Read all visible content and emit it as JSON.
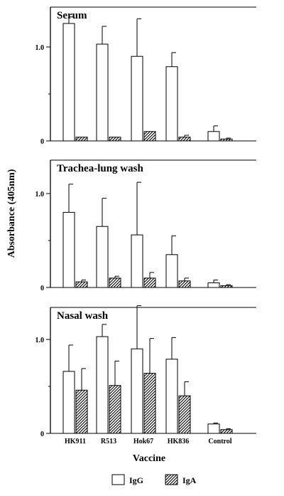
{
  "chart_data": {
    "type": "bar",
    "xlabel": "Vaccine",
    "ylabel": "Absorbance (405nm)",
    "categories": [
      "HK911",
      "R513",
      "Hok67",
      "HK836",
      "Control"
    ],
    "ylim": [
      0,
      1.35
    ],
    "yticks": [
      0,
      1.0
    ],
    "ytick_labels": [
      "0",
      "1.0"
    ],
    "legend": {
      "placement": "bottom",
      "entries": [
        {
          "label": "IgG",
          "pattern": "open"
        },
        {
          "label": "IgA",
          "pattern": "hatched"
        }
      ]
    },
    "panels": [
      {
        "title": "Serum",
        "series": [
          {
            "name": "IgG",
            "values": [
              1.25,
              1.03,
              0.9,
              0.79,
              0.1
            ],
            "errors": [
              0.07,
              0.19,
              0.4,
              0.15,
              0.06
            ]
          },
          {
            "name": "IgA",
            "values": [
              0.04,
              0.04,
              0.1,
              0.04,
              0.02
            ],
            "errors": [
              0,
              0,
              0,
              0.02,
              0.01
            ]
          }
        ]
      },
      {
        "title": "Trachea-lung wash",
        "series": [
          {
            "name": "IgG",
            "values": [
              0.8,
              0.65,
              0.56,
              0.35,
              0.05
            ],
            "errors": [
              0.3,
              0.3,
              0.56,
              0.2,
              0.03
            ]
          },
          {
            "name": "IgA",
            "values": [
              0.06,
              0.1,
              0.1,
              0.07,
              0.02
            ],
            "errors": [
              0.02,
              0.02,
              0.06,
              0.03,
              0.01
            ]
          }
        ]
      },
      {
        "title": "Nasal wash",
        "series": [
          {
            "name": "IgG",
            "values": [
              0.66,
              1.03,
              0.9,
              0.79,
              0.1
            ],
            "errors": [
              0.28,
              0.13,
              0.46,
              0.23,
              0.01
            ]
          },
          {
            "name": "IgA",
            "values": [
              0.46,
              0.51,
              0.64,
              0.4,
              0.04
            ],
            "errors": [
              0.23,
              0.26,
              0.37,
              0.15,
              0.01
            ]
          }
        ]
      }
    ]
  }
}
